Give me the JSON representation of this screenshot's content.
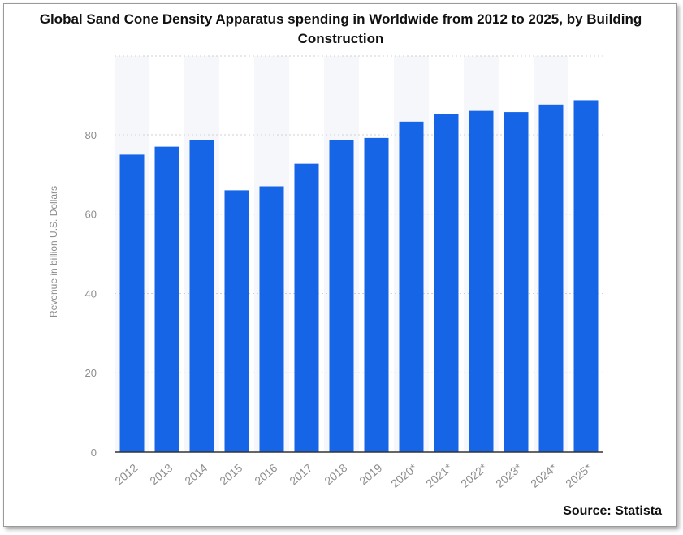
{
  "chart_data": {
    "type": "bar",
    "title": "Global Sand Cone Density Apparatus spending in Worldwide from 2012 to 2025, by Building Construction",
    "xlabel": "",
    "ylabel": "Revenue in billion U.S. Dollars",
    "categories": [
      "2012",
      "2013",
      "2014",
      "2015",
      "2016",
      "2017",
      "2018",
      "2019",
      "2020*",
      "2021*",
      "2022*",
      "2023*",
      "2024*",
      "2025*"
    ],
    "values": [
      75,
      77,
      78.7,
      66,
      67,
      72.7,
      78.7,
      79.2,
      83.3,
      85.2,
      86,
      85.7,
      87.6,
      88.7
    ],
    "yticks": [
      0,
      20,
      40,
      60,
      80
    ],
    "ylim": [
      0,
      90
    ],
    "grid": true,
    "bar_color": "#1665e6"
  },
  "source": "Source: Statista"
}
